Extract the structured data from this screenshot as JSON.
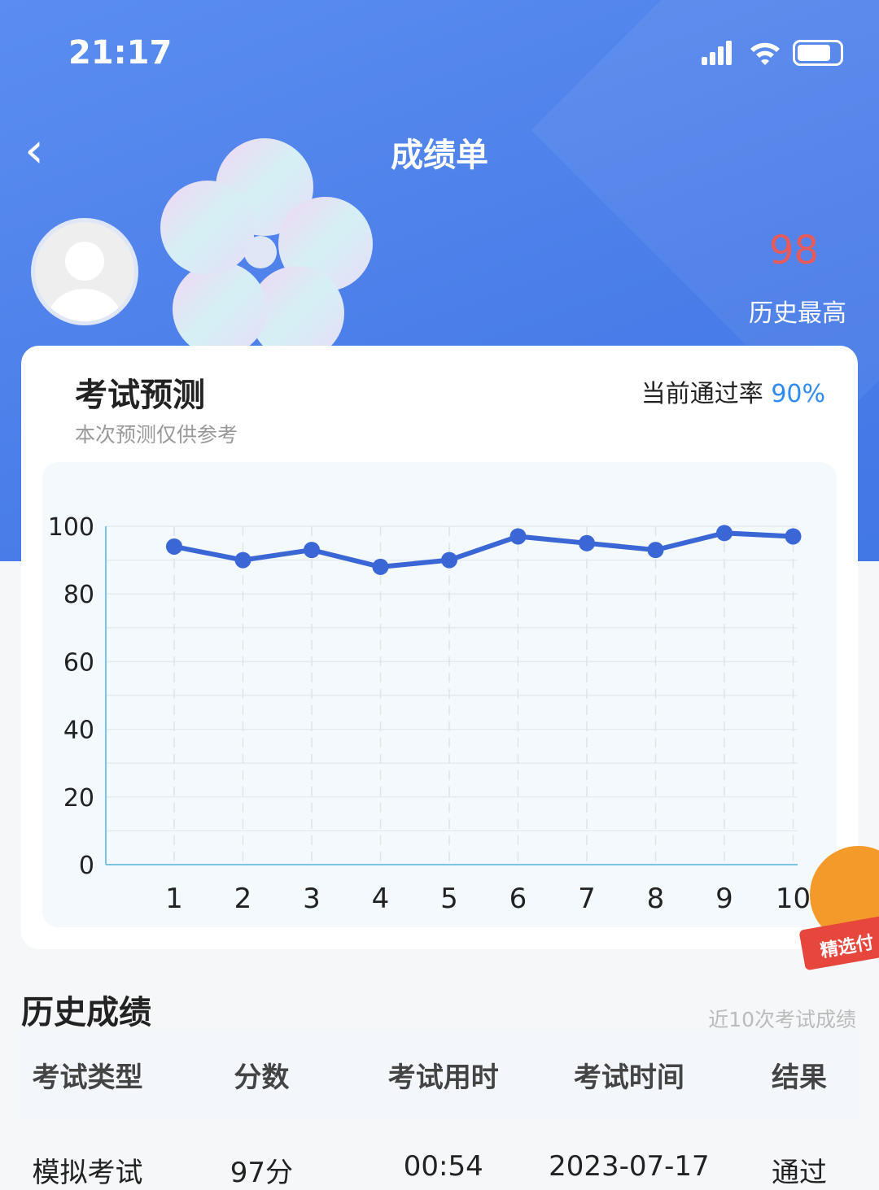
{
  "status_bar": {
    "time": "21:17",
    "icons": [
      "signal-icon",
      "wifi-icon",
      "battery-icon"
    ]
  },
  "header": {
    "title": "成绩单",
    "back_icon": "chevron-left-icon"
  },
  "profile": {
    "best_score": "98",
    "best_label": "历史最高"
  },
  "prediction": {
    "title": "考试预测",
    "subtitle": "本次预测仅供参考",
    "pass_label": "当前通过率",
    "pass_rate": "90%"
  },
  "chart_data": {
    "type": "line",
    "categories": [
      "1",
      "2",
      "3",
      "4",
      "5",
      "6",
      "7",
      "8",
      "9",
      "10"
    ],
    "values": [
      94,
      90,
      93,
      88,
      90,
      97,
      95,
      93,
      98,
      97
    ],
    "ylim": [
      0,
      100
    ],
    "yticks": [
      "0",
      "20",
      "40",
      "60",
      "80",
      "100"
    ],
    "grid": true,
    "color": "#3a66d6"
  },
  "history": {
    "title": "历史成绩",
    "subtitle": "近10次考试成绩",
    "columns": [
      "考试类型",
      "分数",
      "考试用时",
      "考试时间",
      "结果"
    ],
    "rows": [
      [
        "模拟考试",
        "97分",
        "00:54",
        "2023-07-17",
        "通过"
      ]
    ]
  },
  "ad": {
    "label": "精选付"
  }
}
